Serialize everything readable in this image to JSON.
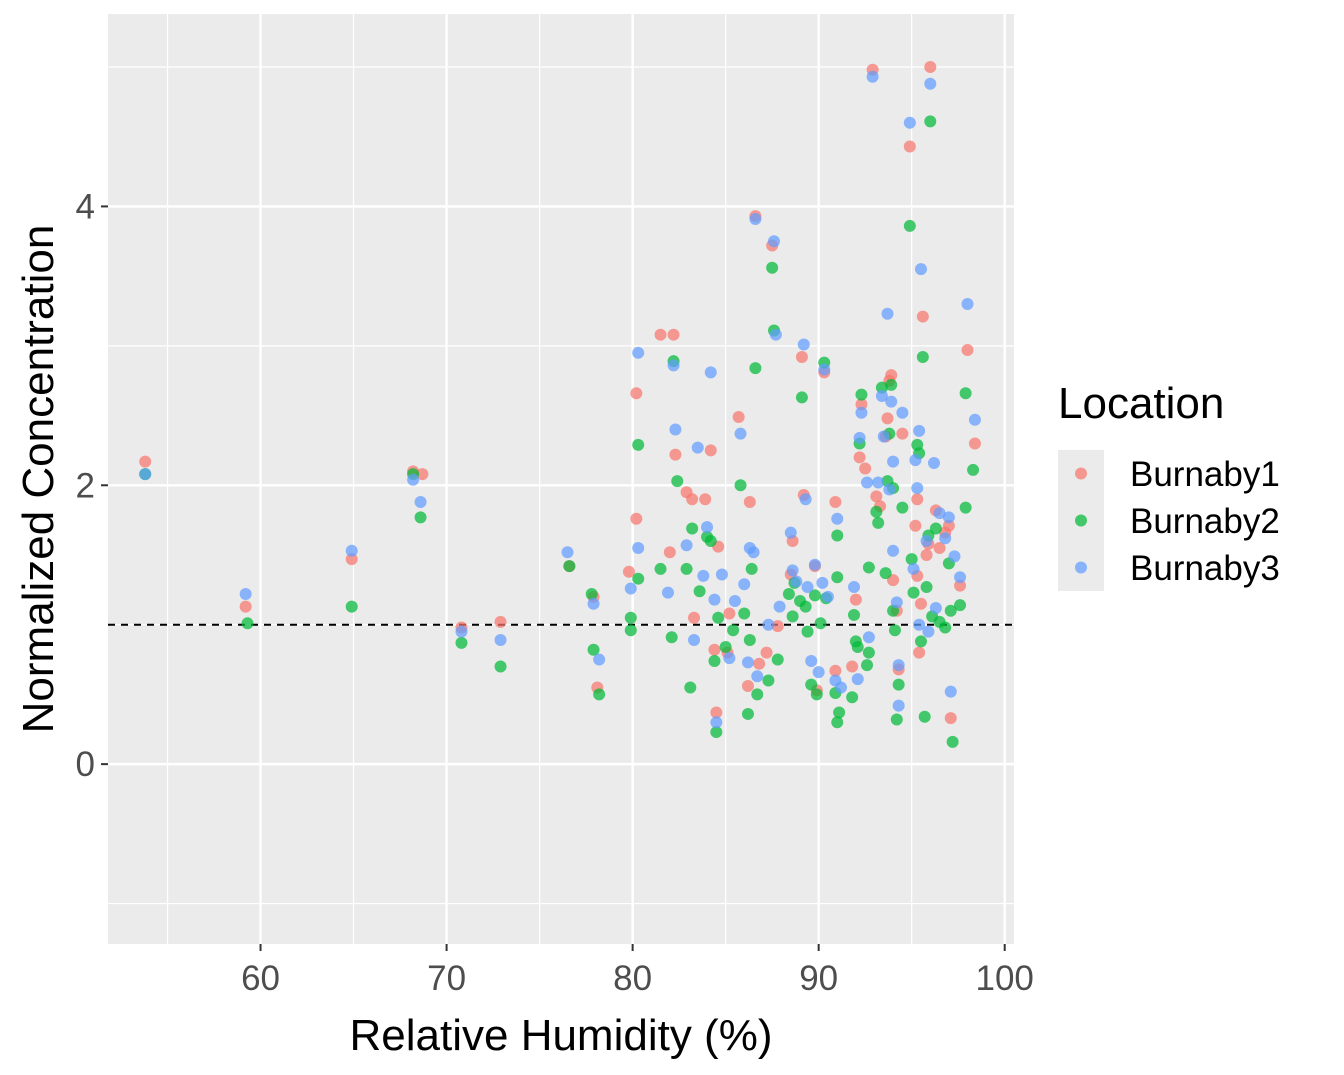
{
  "chart_data": {
    "type": "scatter",
    "title": "",
    "xlabel": "Relative Humidity (%)",
    "ylabel": "Normalized Concentration",
    "xlim": [
      51.8,
      100.5
    ],
    "ylim": [
      -1.29,
      5.38
    ],
    "x_ticks": [
      60,
      70,
      80,
      90,
      100
    ],
    "y_ticks": [
      0,
      2,
      4
    ],
    "x_tick_labels": [
      "60",
      "70",
      "80",
      "90",
      "100"
    ],
    "y_tick_labels": [
      "0",
      "2",
      "4"
    ],
    "grid": true,
    "reference_line": {
      "y": 1,
      "style": "dashed",
      "color": "#000000"
    },
    "legend": {
      "title": "Location",
      "position": "right",
      "entries": [
        "Burnaby1",
        "Burnaby2",
        "Burnaby3"
      ]
    },
    "series": [
      {
        "name": "Burnaby1",
        "color": "#F8766D",
        "points": [
          [
            53.8,
            2.17
          ],
          [
            59.2,
            1.13
          ],
          [
            64.9,
            1.47
          ],
          [
            68.2,
            2.1
          ],
          [
            68.7,
            2.08
          ],
          [
            70.8,
            0.98
          ],
          [
            72.9,
            1.02
          ],
          [
            76.6,
            1.42
          ],
          [
            77.9,
            1.2
          ],
          [
            78.1,
            0.55
          ],
          [
            79.8,
            1.38
          ],
          [
            80.2,
            1.76
          ],
          [
            80.2,
            2.66
          ],
          [
            81.5,
            3.08
          ],
          [
            82.0,
            1.52
          ],
          [
            82.2,
            3.08
          ],
          [
            82.3,
            2.22
          ],
          [
            82.9,
            1.95
          ],
          [
            83.2,
            1.9
          ],
          [
            83.3,
            1.05
          ],
          [
            83.9,
            1.9
          ],
          [
            84.2,
            2.25
          ],
          [
            84.4,
            0.82
          ],
          [
            84.5,
            0.37
          ],
          [
            84.6,
            1.56
          ],
          [
            85.1,
            0.8
          ],
          [
            85.2,
            1.08
          ],
          [
            85.7,
            2.49
          ],
          [
            86.2,
            0.56
          ],
          [
            86.3,
            1.88
          ],
          [
            86.6,
            3.93
          ],
          [
            86.8,
            0.72
          ],
          [
            87.2,
            0.8
          ],
          [
            87.5,
            3.72
          ],
          [
            87.8,
            0.99
          ],
          [
            88.5,
            1.36
          ],
          [
            88.6,
            1.6
          ],
          [
            89.1,
            2.92
          ],
          [
            89.2,
            1.93
          ],
          [
            89.8,
            1.42
          ],
          [
            89.9,
            0.53
          ],
          [
            90.3,
            2.81
          ],
          [
            90.9,
            0.67
          ],
          [
            90.9,
            1.88
          ],
          [
            91.8,
            0.7
          ],
          [
            92.0,
            1.18
          ],
          [
            92.2,
            2.2
          ],
          [
            92.3,
            2.58
          ],
          [
            92.5,
            2.12
          ],
          [
            92.9,
            4.98
          ],
          [
            93.1,
            1.92
          ],
          [
            93.3,
            1.85
          ],
          [
            93.6,
            2.35
          ],
          [
            93.7,
            2.48
          ],
          [
            93.8,
            2.75
          ],
          [
            93.9,
            2.79
          ],
          [
            94.0,
            1.32
          ],
          [
            94.2,
            1.1
          ],
          [
            94.3,
            0.68
          ],
          [
            94.5,
            2.37
          ],
          [
            94.9,
            4.43
          ],
          [
            95.2,
            1.71
          ],
          [
            95.3,
            1.35
          ],
          [
            95.3,
            1.9
          ],
          [
            95.4,
            0.8
          ],
          [
            95.5,
            1.15
          ],
          [
            95.6,
            3.21
          ],
          [
            95.8,
            1.5
          ],
          [
            95.9,
            1.58
          ],
          [
            96.0,
            5.0
          ],
          [
            96.3,
            1.82
          ],
          [
            96.5,
            1.55
          ],
          [
            96.8,
            1.66
          ],
          [
            97.0,
            1.71
          ],
          [
            97.1,
            0.33
          ],
          [
            97.6,
            1.28
          ],
          [
            98.0,
            2.97
          ],
          [
            98.4,
            2.3
          ]
        ]
      },
      {
        "name": "Burnaby2",
        "color": "#00BA38",
        "points": [
          [
            53.8,
            2.08
          ],
          [
            59.3,
            1.01
          ],
          [
            64.9,
            1.13
          ],
          [
            68.2,
            2.08
          ],
          [
            68.6,
            1.77
          ],
          [
            70.8,
            0.87
          ],
          [
            72.9,
            0.7
          ],
          [
            76.6,
            1.42
          ],
          [
            77.8,
            1.22
          ],
          [
            77.9,
            0.82
          ],
          [
            78.2,
            0.5
          ],
          [
            79.9,
            1.05
          ],
          [
            79.9,
            0.96
          ],
          [
            80.3,
            1.33
          ],
          [
            80.3,
            2.29
          ],
          [
            81.5,
            1.4
          ],
          [
            82.1,
            0.91
          ],
          [
            82.2,
            2.89
          ],
          [
            82.4,
            2.03
          ],
          [
            82.9,
            1.4
          ],
          [
            83.1,
            0.55
          ],
          [
            83.2,
            1.69
          ],
          [
            83.6,
            1.24
          ],
          [
            84.0,
            1.63
          ],
          [
            84.2,
            1.6
          ],
          [
            84.4,
            0.74
          ],
          [
            84.5,
            0.23
          ],
          [
            84.6,
            1.05
          ],
          [
            85.0,
            0.84
          ],
          [
            85.4,
            0.96
          ],
          [
            85.8,
            2.0
          ],
          [
            86.0,
            1.08
          ],
          [
            86.2,
            0.36
          ],
          [
            86.3,
            0.89
          ],
          [
            86.4,
            1.4
          ],
          [
            86.6,
            2.84
          ],
          [
            86.7,
            0.5
          ],
          [
            87.3,
            0.6
          ],
          [
            87.5,
            3.56
          ],
          [
            87.6,
            3.11
          ],
          [
            87.8,
            0.75
          ],
          [
            88.4,
            1.22
          ],
          [
            88.6,
            1.06
          ],
          [
            88.7,
            1.3
          ],
          [
            89.0,
            1.17
          ],
          [
            89.1,
            2.63
          ],
          [
            89.3,
            1.13
          ],
          [
            89.4,
            0.95
          ],
          [
            89.6,
            0.57
          ],
          [
            89.8,
            1.21
          ],
          [
            89.9,
            0.5
          ],
          [
            90.1,
            1.01
          ],
          [
            90.3,
            2.88
          ],
          [
            90.4,
            1.19
          ],
          [
            90.9,
            0.51
          ],
          [
            91.0,
            1.34
          ],
          [
            91.0,
            1.64
          ],
          [
            91.0,
            0.3
          ],
          [
            91.1,
            0.37
          ],
          [
            91.8,
            0.48
          ],
          [
            91.9,
            1.07
          ],
          [
            92.0,
            0.88
          ],
          [
            92.1,
            0.84
          ],
          [
            92.2,
            2.3
          ],
          [
            92.3,
            2.65
          ],
          [
            92.6,
            0.71
          ],
          [
            92.7,
            1.41
          ],
          [
            92.7,
            0.8
          ],
          [
            93.1,
            1.81
          ],
          [
            93.2,
            1.73
          ],
          [
            93.4,
            2.7
          ],
          [
            93.6,
            1.37
          ],
          [
            93.7,
            2.03
          ],
          [
            93.8,
            2.37
          ],
          [
            93.9,
            2.72
          ],
          [
            94.0,
            1.1
          ],
          [
            94.0,
            1.98
          ],
          [
            94.1,
            0.96
          ],
          [
            94.2,
            0.32
          ],
          [
            94.3,
            0.57
          ],
          [
            94.5,
            1.84
          ],
          [
            94.9,
            3.86
          ],
          [
            95.0,
            1.47
          ],
          [
            95.1,
            1.23
          ],
          [
            95.3,
            2.29
          ],
          [
            95.4,
            2.23
          ],
          [
            95.5,
            0.88
          ],
          [
            95.6,
            2.92
          ],
          [
            95.7,
            0.34
          ],
          [
            95.8,
            1.27
          ],
          [
            95.9,
            1.64
          ],
          [
            96.0,
            4.61
          ],
          [
            96.1,
            1.06
          ],
          [
            96.3,
            1.69
          ],
          [
            96.5,
            1.02
          ],
          [
            96.8,
            0.98
          ],
          [
            97.0,
            1.44
          ],
          [
            97.1,
            1.1
          ],
          [
            97.2,
            0.16
          ],
          [
            97.6,
            1.14
          ],
          [
            97.9,
            1.84
          ],
          [
            97.9,
            2.66
          ],
          [
            98.3,
            2.11
          ]
        ]
      },
      {
        "name": "Burnaby3",
        "color": "#619CFF",
        "points": [
          [
            53.8,
            2.08
          ],
          [
            59.2,
            1.22
          ],
          [
            64.9,
            1.53
          ],
          [
            68.2,
            2.04
          ],
          [
            68.6,
            1.88
          ],
          [
            70.8,
            0.95
          ],
          [
            72.9,
            0.89
          ],
          [
            76.5,
            1.52
          ],
          [
            77.9,
            1.15
          ],
          [
            78.2,
            0.75
          ],
          [
            79.9,
            1.26
          ],
          [
            80.3,
            1.55
          ],
          [
            80.3,
            2.95
          ],
          [
            81.9,
            1.23
          ],
          [
            82.2,
            2.86
          ],
          [
            82.3,
            2.4
          ],
          [
            82.9,
            1.57
          ],
          [
            83.3,
            0.89
          ],
          [
            83.5,
            2.27
          ],
          [
            83.8,
            1.35
          ],
          [
            84.0,
            1.7
          ],
          [
            84.2,
            2.81
          ],
          [
            84.4,
            1.18
          ],
          [
            84.5,
            0.3
          ],
          [
            84.8,
            1.36
          ],
          [
            85.2,
            0.76
          ],
          [
            85.5,
            1.17
          ],
          [
            85.8,
            2.37
          ],
          [
            86.0,
            1.29
          ],
          [
            86.2,
            0.73
          ],
          [
            86.3,
            1.55
          ],
          [
            86.5,
            1.52
          ],
          [
            86.6,
            3.91
          ],
          [
            86.7,
            0.63
          ],
          [
            87.3,
            1.0
          ],
          [
            87.6,
            3.75
          ],
          [
            87.7,
            3.08
          ],
          [
            87.9,
            1.13
          ],
          [
            88.5,
            1.66
          ],
          [
            88.6,
            1.39
          ],
          [
            88.8,
            1.31
          ],
          [
            89.2,
            3.01
          ],
          [
            89.3,
            1.9
          ],
          [
            89.4,
            1.27
          ],
          [
            89.6,
            0.74
          ],
          [
            89.8,
            1.43
          ],
          [
            90.0,
            0.66
          ],
          [
            90.2,
            1.3
          ],
          [
            90.3,
            2.83
          ],
          [
            90.5,
            1.2
          ],
          [
            90.9,
            0.6
          ],
          [
            91.0,
            1.76
          ],
          [
            91.2,
            0.55
          ],
          [
            91.9,
            1.27
          ],
          [
            92.1,
            0.61
          ],
          [
            92.2,
            2.34
          ],
          [
            92.3,
            2.52
          ],
          [
            92.6,
            2.02
          ],
          [
            92.7,
            0.91
          ],
          [
            92.9,
            4.93
          ],
          [
            93.2,
            2.02
          ],
          [
            93.4,
            2.64
          ],
          [
            93.5,
            2.35
          ],
          [
            93.7,
            3.23
          ],
          [
            93.8,
            1.97
          ],
          [
            93.9,
            2.6
          ],
          [
            94.0,
            1.53
          ],
          [
            94.0,
            2.17
          ],
          [
            94.2,
            1.16
          ],
          [
            94.3,
            0.42
          ],
          [
            94.3,
            0.71
          ],
          [
            94.5,
            2.52
          ],
          [
            94.9,
            4.6
          ],
          [
            95.1,
            1.4
          ],
          [
            95.2,
            2.18
          ],
          [
            95.3,
            1.98
          ],
          [
            95.4,
            1.0
          ],
          [
            95.4,
            2.39
          ],
          [
            95.5,
            3.55
          ],
          [
            95.8,
            1.6
          ],
          [
            95.9,
            0.95
          ],
          [
            96.0,
            4.88
          ],
          [
            96.2,
            2.16
          ],
          [
            96.3,
            1.12
          ],
          [
            96.5,
            1.8
          ],
          [
            96.8,
            1.62
          ],
          [
            97.0,
            1.77
          ],
          [
            97.1,
            0.52
          ],
          [
            97.3,
            1.49
          ],
          [
            97.6,
            1.34
          ],
          [
            98.0,
            3.3
          ],
          [
            98.4,
            2.47
          ]
        ]
      }
    ]
  }
}
